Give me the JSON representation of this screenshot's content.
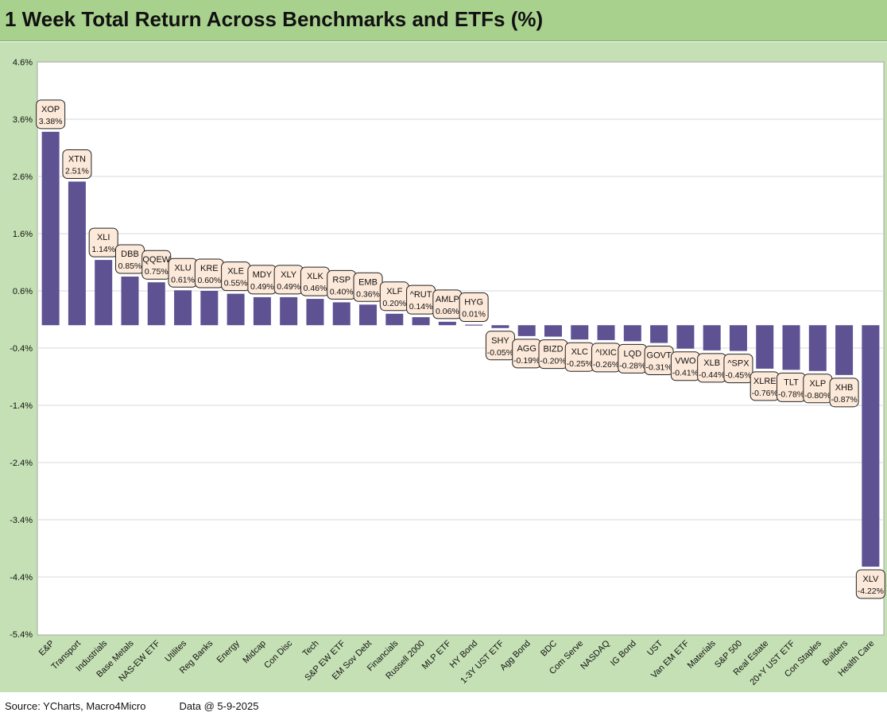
{
  "title": "1 Week Total Return Across Benchmarks and ETFs (%)",
  "footer": {
    "source": "Source: YCharts, Macro4Micro",
    "date": "Data @ 5-9-2025"
  },
  "colors": {
    "title_bg": "#a9d18e",
    "panel_bg": "#c5e0b4",
    "bar": "#5f5293",
    "label_bg": "#fde9d9"
  },
  "chart_data": {
    "type": "bar",
    "title": "1 Week Total Return Across Benchmarks and ETFs (%)",
    "xlabel": "",
    "ylabel": "",
    "ylim": [
      -5.4,
      4.6
    ],
    "yticks": [
      "4.6%",
      "3.6%",
      "2.6%",
      "1.6%",
      "0.6%",
      "-0.4%",
      "-1.4%",
      "-2.4%",
      "-3.4%",
      "-4.4%",
      "-5.4%"
    ],
    "grid": true,
    "categories": [
      "E&P",
      "Transport",
      "Industrials",
      "Base Metals",
      "NAS-EW ETF",
      "Utilites",
      "Reg Banks",
      "Energy",
      "Midcap",
      "Con Disc",
      "Tech",
      "S&P EW ETF",
      "EM Sov Debt",
      "Financials",
      "Russell 2000",
      "MLP ETF",
      "HY Bond",
      "1-3Y UST ETF",
      "Agg Bond",
      "BDC",
      "Com Serve",
      "NASDAQ",
      "IG Bond",
      "UST",
      "Van EM ETF",
      "Materials",
      "S&P 500",
      "Real Estate",
      "20+Y UST ETF",
      "Con Staples",
      "Builders",
      "Health Care"
    ],
    "tickers": [
      "XOP",
      "XTN",
      "XLI",
      "DBB",
      "QQEW",
      "XLU",
      "KRE",
      "XLE",
      "MDY",
      "XLY",
      "XLK",
      "RSP",
      "EMB",
      "XLF",
      "^RUT",
      "AMLP",
      "HYG",
      "SHY",
      "AGG",
      "BIZD",
      "XLC",
      "^IXIC",
      "LQD",
      "GOVT",
      "VWO",
      "XLB",
      "^SPX",
      "XLRE",
      "TLT",
      "XLP",
      "XHB",
      "XLV"
    ],
    "value_labels": [
      "3.38%",
      "2.51%",
      "1.14%",
      "0.85%",
      "0.75%",
      "0.61%",
      "0.60%",
      "0.55%",
      "0.49%",
      "0.49%",
      "0.46%",
      "0.40%",
      "0.36%",
      "0.20%",
      "0.14%",
      "0.06%",
      "0.01%",
      "-0.05%",
      "-0.19%",
      "-0.20%",
      "-0.25%",
      "-0.26%",
      "-0.28%",
      "-0.31%",
      "-0.41%",
      "-0.44%",
      "-0.45%",
      "-0.76%",
      "-0.78%",
      "-0.80%",
      "-0.87%",
      "-4.22%"
    ],
    "values": [
      3.38,
      2.51,
      1.14,
      0.85,
      0.75,
      0.61,
      0.6,
      0.55,
      0.49,
      0.49,
      0.46,
      0.4,
      0.36,
      0.2,
      0.14,
      0.06,
      0.01,
      -0.05,
      -0.19,
      -0.2,
      -0.25,
      -0.26,
      -0.28,
      -0.31,
      -0.41,
      -0.44,
      -0.45,
      -0.76,
      -0.78,
      -0.8,
      -0.87,
      -4.22
    ]
  }
}
